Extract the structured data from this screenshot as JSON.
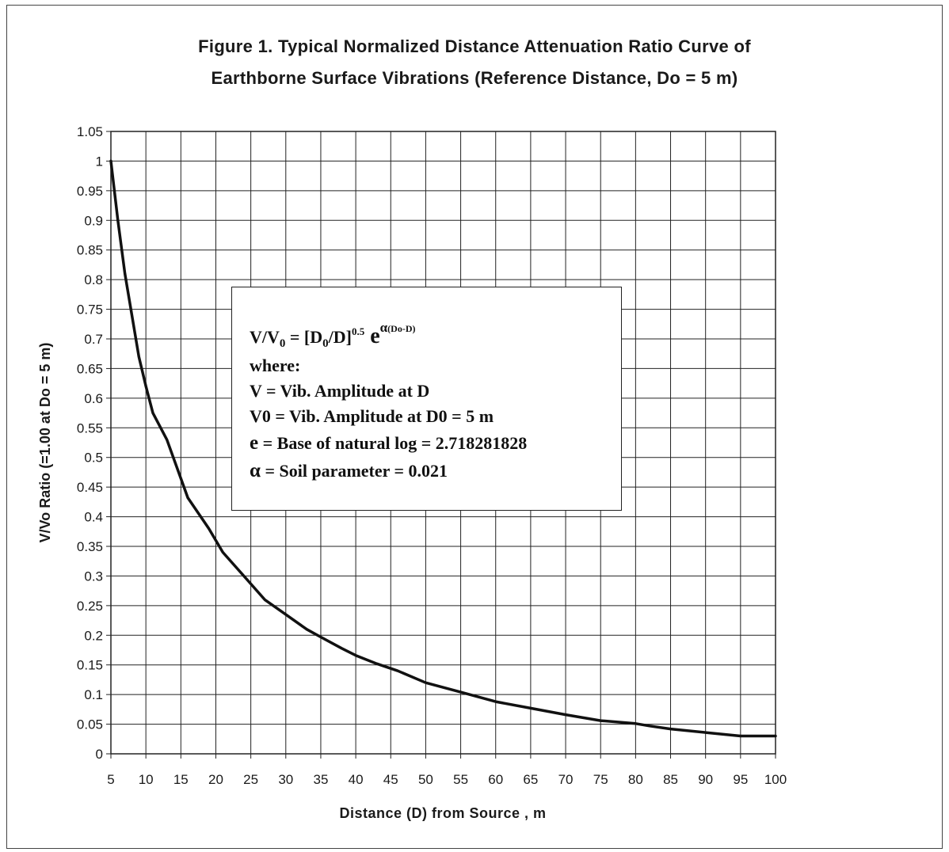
{
  "title": {
    "line1": "Figure 1. Typical Normalized Distance Attenuation Ratio Curve of",
    "line2": "Earthborne Surface Vibrations (Reference Distance, Do = 5 m)"
  },
  "chart_data": {
    "type": "line",
    "xlabel": "Distance (D) from Source , m",
    "ylabel": "V/Vo Ratio (=1.00 at Do = 5 m)",
    "xlim": [
      5,
      100
    ],
    "ylim": [
      0,
      1.05
    ],
    "x_ticks": [
      "5",
      "10",
      "15",
      "20",
      "25",
      "30",
      "35",
      "40",
      "45",
      "50",
      "55",
      "60",
      "65",
      "70",
      "75",
      "80",
      "85",
      "90",
      "95",
      "100"
    ],
    "y_ticks": [
      "0",
      "0.05",
      "0.1",
      "0.15",
      "0.2",
      "0.25",
      "0.3",
      "0.35",
      "0.4",
      "0.45",
      "0.5",
      "0.55",
      "0.6",
      "0.65",
      "0.7",
      "0.75",
      "0.8",
      "0.85",
      "0.9",
      "0.95",
      "1",
      "1.05"
    ],
    "grid": true,
    "series": [
      {
        "x": [
          5,
          6,
          7,
          8,
          9,
          10,
          11,
          13,
          16,
          19,
          21,
          24,
          27,
          30,
          33,
          35,
          38,
          40,
          43,
          46,
          50,
          55,
          60,
          65,
          70,
          75,
          80,
          82,
          85,
          90,
          95,
          100
        ],
        "y": [
          1.0,
          0.9,
          0.81,
          0.74,
          0.67,
          0.62,
          0.575,
          0.53,
          0.432,
          0.38,
          0.34,
          0.3,
          0.26,
          0.235,
          0.21,
          0.197,
          0.178,
          0.166,
          0.152,
          0.14,
          0.12,
          0.104,
          0.088,
          0.077,
          0.066,
          0.056,
          0.051,
          0.047,
          0.042,
          0.036,
          0.03,
          0.03
        ]
      }
    ]
  },
  "equation": {
    "lhs_v": "V/V",
    "lhs_sub": "0",
    "eq_mid": " = [D",
    "d0_sub": "0",
    "d_close": "/D]",
    "exp_sup": "0.5",
    "e_char": " e",
    "alpha_char": "α",
    "alpha_exp": "(Do-D)",
    "where": "where:",
    "v_def": "V = Vib. Amplitude at D",
    "v0_def": "V0 = Vib. Amplitude at D0 = 5 m",
    "e_def_e": "e",
    "e_def_rest": " = Base of natural log = 2.718281828",
    "alpha_def_a": "α",
    "alpha_def_rest": " = Soil parameter = 0.021"
  }
}
